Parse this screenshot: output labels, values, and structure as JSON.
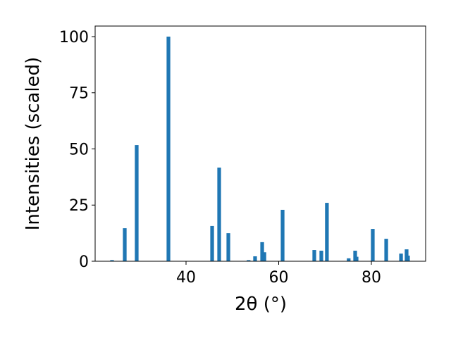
{
  "chart_data": {
    "type": "bar",
    "x_label": "2θ (°)",
    "y_label": "Intensities (scaled)",
    "x": [
      24.03,
      26.77,
      29.35,
      36.2,
      45.63,
      47.15,
      49.13,
      53.5,
      54.9,
      56.43,
      56.9,
      60.84,
      67.68,
      69.2,
      70.4,
      75.1,
      76.5,
      76.8,
      80.3,
      83.2,
      86.4,
      87.6,
      87.9
    ],
    "values": [
      0.5,
      14.7,
      51.7,
      100,
      15.7,
      41.7,
      12.5,
      0.5,
      2.2,
      8.5,
      4,
      22.9,
      5,
      4.7,
      26,
      1.3,
      4.7,
      2,
      14.4,
      10,
      3.4,
      5.3,
      2.5
    ],
    "color": "#1f77b4",
    "xlim": [
      20.38,
      91.71
    ],
    "ylim": [
      0,
      104.7
    ],
    "xticks": [
      40,
      60,
      80
    ],
    "yticks": [
      0,
      25,
      50,
      75,
      100
    ],
    "grid": false
  }
}
